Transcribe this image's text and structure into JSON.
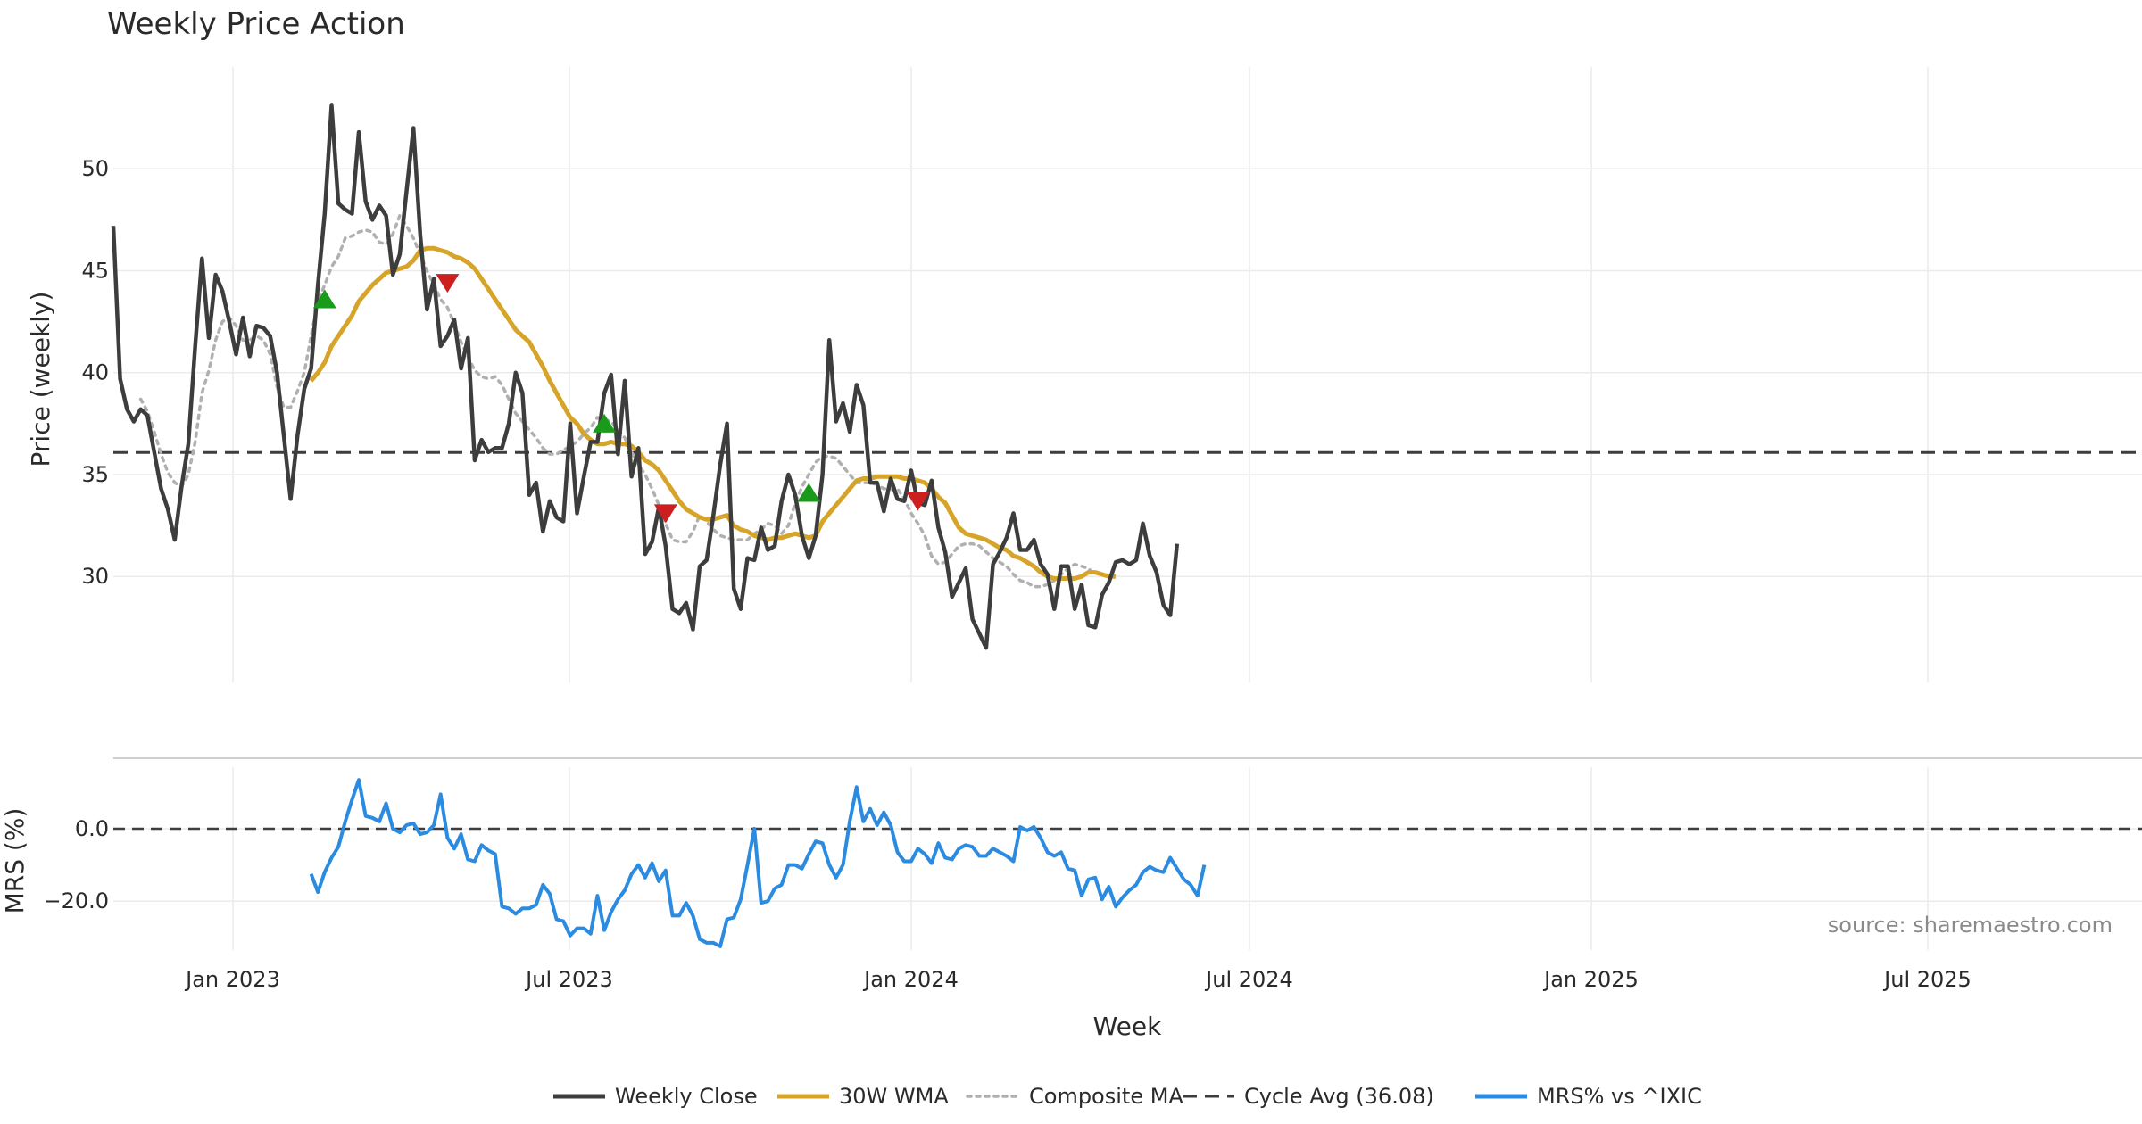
{
  "chart_data": {
    "type": "line",
    "title": "Weekly Price Action",
    "source": "source: sharemaestro.com",
    "xlabel": "Week",
    "x_ticks": [
      "Jan 2023",
      "Jul 2023",
      "Jan 2024",
      "Jul 2024",
      "Jan 2025",
      "Jul 2025"
    ],
    "price_panel": {
      "ylabel": "Price (weekly)",
      "ylim": [
        24.8,
        55
      ],
      "y_ticks": [
        "30",
        "35",
        "40",
        "45",
        "50"
      ],
      "y_tick_values": [
        30,
        35,
        40,
        45,
        50
      ],
      "cycle_avg": 36.08,
      "weekly_close": [
        47.2,
        39.7,
        38.2,
        37.6,
        38.2,
        37.9,
        36.1,
        34.3,
        33.3,
        31.8,
        34.4,
        36.5,
        41.3,
        45.6,
        41.7,
        44.8,
        44.0,
        42.5,
        40.9,
        42.7,
        40.8,
        42.3,
        42.2,
        41.8,
        40.0,
        36.9,
        33.8,
        36.9,
        39.2,
        40.2,
        44.3,
        47.8,
        53.1,
        48.3,
        48.0,
        47.8,
        51.8,
        48.4,
        47.5,
        48.2,
        47.7,
        44.8,
        45.8,
        48.9,
        52.0,
        46.8,
        43.1,
        44.6,
        41.3,
        41.8,
        42.6,
        40.2,
        41.7,
        35.7,
        36.7,
        36.1,
        36.3,
        36.3,
        37.5,
        40.0,
        39.0,
        34.0,
        34.6,
        32.2,
        33.7,
        32.9,
        32.7,
        37.5,
        33.1,
        34.9,
        36.6,
        36.6,
        39.0,
        39.9,
        36.0,
        39.6,
        34.9,
        36.3,
        31.1,
        31.7,
        33.4,
        31.5,
        28.4,
        28.2,
        28.7,
        27.4,
        30.5,
        30.8,
        33.0,
        35.5,
        37.5,
        29.4,
        28.4,
        30.9,
        30.8,
        32.4,
        31.3,
        31.5,
        33.7,
        35.0,
        34.0,
        32.0,
        30.9,
        32.0,
        35.0,
        41.6,
        37.6,
        38.5,
        37.1,
        39.4,
        38.4,
        34.6,
        34.6,
        33.2,
        34.8,
        33.8,
        33.7,
        35.2,
        33.6,
        33.5,
        34.7,
        32.4,
        31.2,
        29.0,
        29.7,
        30.4,
        27.9,
        27.2,
        26.5,
        30.6,
        31.2,
        31.9,
        33.1,
        31.3,
        31.3,
        31.8,
        30.6,
        30.1,
        28.4,
        30.5,
        30.5,
        28.4,
        29.6,
        27.6,
        27.5,
        29.1,
        29.7,
        30.7,
        30.8,
        30.6,
        30.8,
        32.6,
        31.0,
        30.2,
        28.6,
        28.1,
        31.6
      ],
      "wma_30w": [
        39.6,
        40.0,
        40.5,
        41.3,
        41.8,
        42.3,
        42.8,
        43.5,
        43.9,
        44.3,
        44.6,
        44.9,
        45.0,
        45.1,
        45.2,
        45.5,
        46.0,
        46.1,
        46.1,
        46.0,
        45.9,
        45.7,
        45.6,
        45.4,
        45.1,
        44.6,
        44.1,
        43.6,
        43.1,
        42.6,
        42.1,
        41.8,
        41.5,
        40.9,
        40.3,
        39.6,
        39.0,
        38.4,
        37.8,
        37.5,
        37.0,
        36.7,
        36.5,
        36.5,
        36.6,
        36.5,
        36.5,
        36.4,
        36.1,
        35.7,
        35.5,
        35.2,
        34.7,
        34.2,
        33.7,
        33.3,
        33.1,
        32.9,
        32.8,
        32.8,
        32.9,
        33.0,
        32.5,
        32.3,
        32.2,
        32.0,
        31.9,
        31.8,
        31.9,
        31.9,
        32.0,
        32.1,
        32.0,
        31.9,
        32.0,
        32.7,
        33.1,
        33.5,
        33.9,
        34.3,
        34.7,
        34.8,
        34.8,
        34.9,
        34.9,
        34.9,
        34.9,
        34.8,
        34.8,
        34.7,
        34.6,
        34.3,
        33.9,
        33.6,
        33.0,
        32.4,
        32.1,
        32.0,
        31.9,
        31.8,
        31.6,
        31.4,
        31.3,
        31.0,
        30.9,
        30.7,
        30.5,
        30.2,
        30.0,
        29.9,
        29.9,
        29.9,
        29.9,
        30.0,
        30.2,
        30.2,
        30.1,
        30.0,
        30.0
      ],
      "composite_ma": [
        38.7,
        38.1,
        37.1,
        36.0,
        35.1,
        34.6,
        34.4,
        35.0,
        36.6,
        39.0,
        40.1,
        41.6,
        42.5,
        42.7,
        42.3,
        41.6,
        41.6,
        41.8,
        41.6,
        40.9,
        39.3,
        38.3,
        38.3,
        39.1,
        40.0,
        41.8,
        43.5,
        44.3,
        45.2,
        45.7,
        46.6,
        46.7,
        46.9,
        47.0,
        46.9,
        46.4,
        46.3,
        46.8,
        47.7,
        47.2,
        46.6,
        45.8,
        45.0,
        44.3,
        43.6,
        43.2,
        42.4,
        41.5,
        40.8,
        40.1,
        39.8,
        39.7,
        39.8,
        39.4,
        38.7,
        38.0,
        37.6,
        37.2,
        36.8,
        36.3,
        36.0,
        36.0,
        36.2,
        36.4,
        36.6,
        37.0,
        37.3,
        37.8,
        37.7,
        37.6,
        37.2,
        36.8,
        36.1,
        35.5,
        35.0,
        34.3,
        33.5,
        32.6,
        31.8,
        31.7,
        31.7,
        32.2,
        33.0,
        32.7,
        32.3,
        32.0,
        31.9,
        31.8,
        31.8,
        31.8,
        32.1,
        32.3,
        32.6,
        32.5,
        32.1,
        32.5,
        33.6,
        34.4,
        35.0,
        35.6,
        35.9,
        35.9,
        35.8,
        35.4,
        35.0,
        34.6,
        34.6,
        34.6,
        34.5,
        34.3,
        34.3,
        34.3,
        33.8,
        33.1,
        32.6,
        32.0,
        31.0,
        30.6,
        30.7,
        31.1,
        31.5,
        31.6,
        31.6,
        31.5,
        31.2,
        30.9,
        30.7,
        30.5,
        30.1,
        29.8,
        29.7,
        29.5,
        29.5,
        29.6,
        29.8,
        30.1,
        30.4,
        30.6,
        30.5,
        30.4,
        30.0
      ],
      "buy_signals": [
        [
          31,
          43.6
        ],
        [
          72,
          37.5
        ],
        [
          102,
          34.1
        ]
      ],
      "sell_signals": [
        [
          49,
          44.4
        ],
        [
          81,
          33.1
        ],
        [
          118,
          33.7
        ]
      ]
    },
    "mrs_panel": {
      "ylabel": "MRS (%)",
      "ylim": [
        -33.5,
        17
      ],
      "y_ticks": [
        "0.0",
        "−20.0"
      ],
      "y_tick_values": [
        0,
        -20
      ],
      "reference": 0,
      "mrs_pct": [
        -12.5,
        -17.5,
        -12,
        -8,
        -5,
        2,
        8,
        13.5,
        3.5,
        3,
        2,
        7,
        0,
        -1,
        1,
        1.5,
        -1.5,
        -1,
        1,
        9.5,
        -2.5,
        -5.5,
        -1.5,
        -8.5,
        -9,
        -4.5,
        -6,
        -7,
        -21.5,
        -22,
        -23.5,
        -22,
        -22,
        -21,
        -15.5,
        -18,
        -25,
        -25.5,
        -29.5,
        -27.5,
        -27.5,
        -29,
        -18.5,
        -28,
        -23,
        -19.5,
        -17,
        -12.5,
        -10,
        -13.5,
        -9.5,
        -14.5,
        -11.5,
        -24,
        -24,
        -20.5,
        -24,
        -30.5,
        -31.5,
        -31.5,
        -32.5,
        -25,
        -24.5,
        -19.5,
        -10,
        0,
        -20.5,
        -20,
        -16.5,
        -15.5,
        -10,
        -10,
        -11,
        -7,
        -3.5,
        -4,
        -10,
        -13.5,
        -10,
        2,
        11.5,
        2,
        5.5,
        1,
        4.5,
        1,
        -6.5,
        -9,
        -9,
        -5.5,
        -7,
        -9.5,
        -4,
        -8,
        -8.5,
        -5.5,
        -4.5,
        -5,
        -7.5,
        -7.5,
        -5.5,
        -6.5,
        -7.5,
        -9,
        0.5,
        -0.5,
        0.5,
        -2.5,
        -6.5,
        -7.5,
        -6.5,
        -11,
        -11.5,
        -18.5,
        -14,
        -13.5,
        -19.5,
        -16,
        -21.5,
        -19,
        -17,
        -15.5,
        -12,
        -10.5,
        -11.5,
        -12,
        -8,
        -11,
        -14,
        -15.5,
        -18.5,
        -10
      ]
    },
    "legend": [
      {
        "label": "Weekly Close",
        "color": "#3d3d3d",
        "style": "solid"
      },
      {
        "label": "30W WMA",
        "color": "#d6a429",
        "style": "solid"
      },
      {
        "label": "Composite MA",
        "color": "#b0b0b0",
        "style": "dotted"
      },
      {
        "label": "Cycle Avg (36.08)",
        "color": "#3d3d3d",
        "style": "dashed"
      },
      {
        "label": "MRS% vs ^IXIC",
        "color": "#2b8be0",
        "style": "solid"
      }
    ],
    "colors": {
      "close": "#3d3d3d",
      "wma": "#d6a429",
      "composite": "#b0b0b0",
      "cycle": "#3d3d3d",
      "mrs": "#2b8be0",
      "buy": "#1a9a1a",
      "sell": "#cc1f1f",
      "grid": "#ebebeb"
    }
  }
}
